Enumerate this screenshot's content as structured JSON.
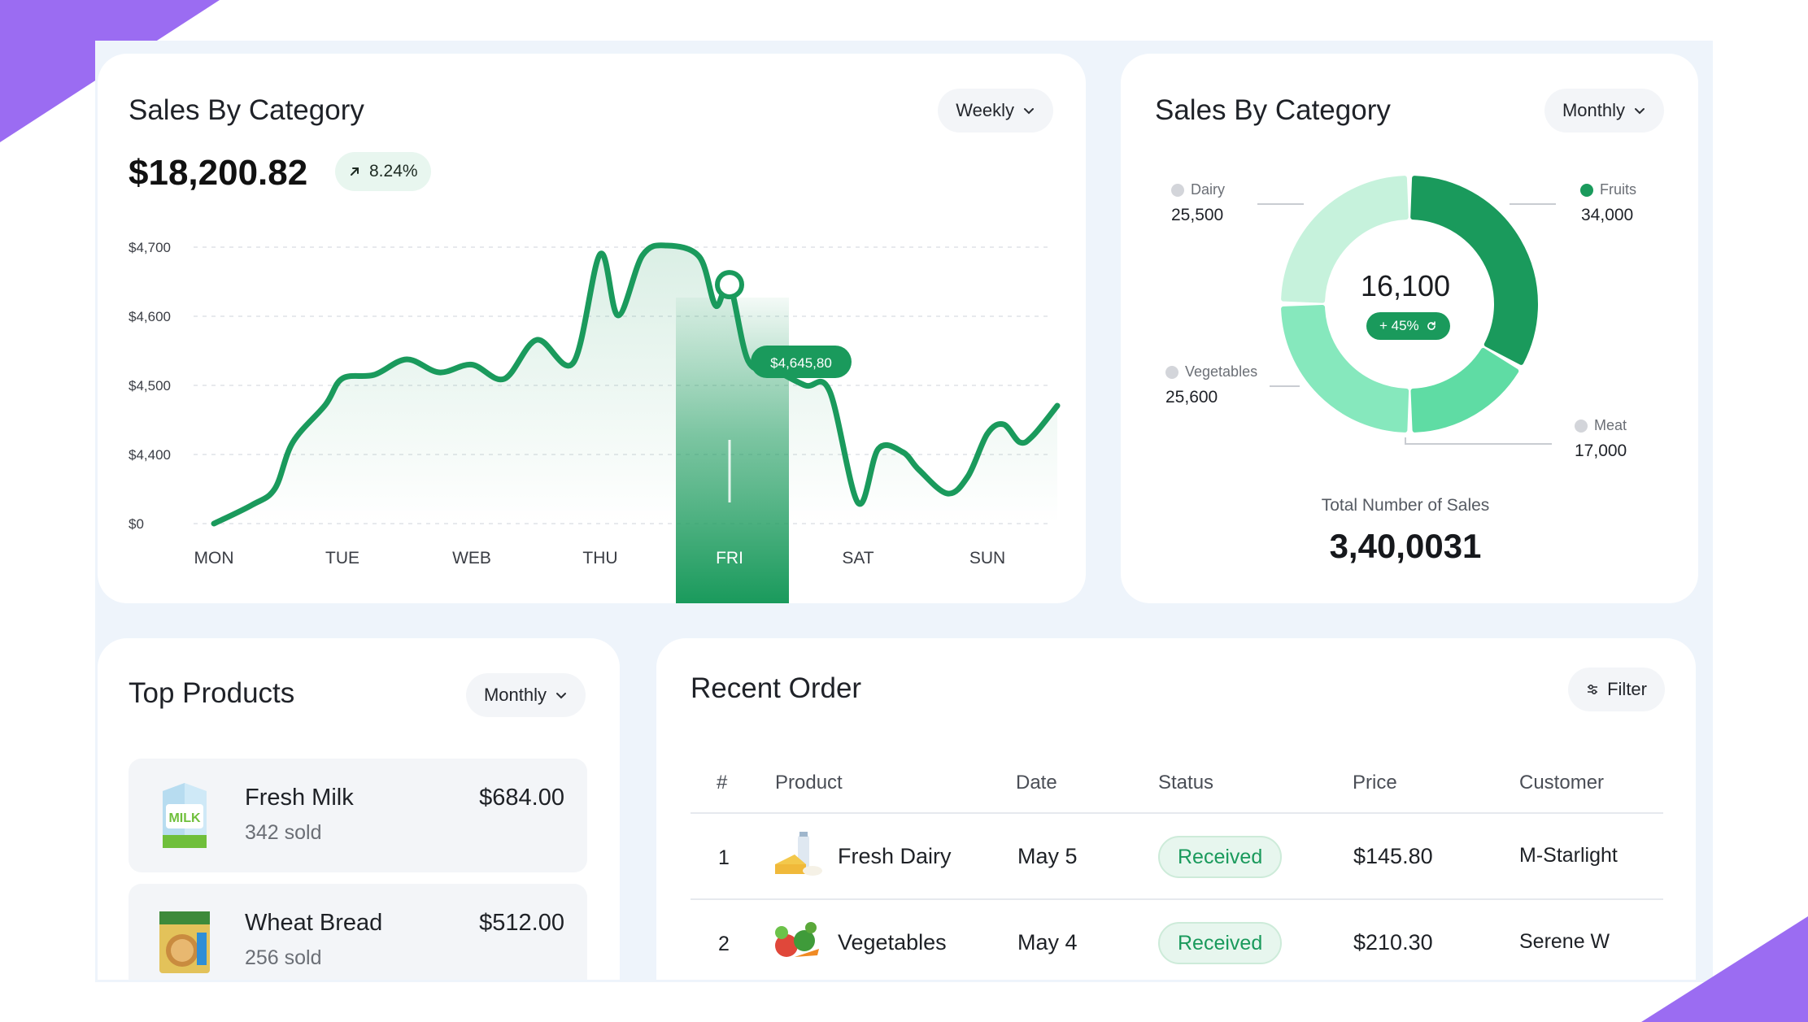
{
  "colors": {
    "accent": "#1a9a5c",
    "accent_light": "#e7f6ee",
    "corner": "#9b6cf2",
    "donut_dairy": "#c6f2dc",
    "donut_fruits": "#1a9a5c",
    "donut_meat": "#5fdca4",
    "donut_vegetables": "#86e8bd"
  },
  "sales_line": {
    "title": "Sales By Category",
    "period": "Weekly",
    "amount": "$18,200.82",
    "change": "8.24%",
    "tooltip": "$4,645,80",
    "highlight_day": "FRI"
  },
  "sales_donut": {
    "title": "Sales By Category",
    "period": "Monthly",
    "center_value": "16,100",
    "center_change": "+ 45%",
    "legend": [
      {
        "name": "Dairy",
        "value": "25,500"
      },
      {
        "name": "Fruits",
        "value": "34,000"
      },
      {
        "name": "Vegetables",
        "value": "25,600"
      },
      {
        "name": "Meat",
        "value": "17,000"
      }
    ],
    "total_label": "Total Number of Sales",
    "total_value": "3,40,0031"
  },
  "top_products": {
    "title": "Top Products",
    "period": "Monthly",
    "items": [
      {
        "name": "Fresh Milk",
        "sold": "342 sold",
        "price": "$684.00",
        "icon": "milk-carton-icon"
      },
      {
        "name": "Wheat Bread",
        "sold": "256 sold",
        "price": "$512.00",
        "icon": "bread-box-icon"
      }
    ]
  },
  "recent_orders": {
    "title": "Recent Order",
    "filter_label": "Filter",
    "columns": [
      "#",
      "Product",
      "Date",
      "Status",
      "Price",
      "Customer"
    ],
    "rows": [
      {
        "num": "1",
        "product": "Fresh Dairy",
        "date": "May 5",
        "status": "Received",
        "price": "$145.80",
        "customer": "M-Starlight",
        "icon": "dairy-products-icon"
      },
      {
        "num": "2",
        "product": "Vegetables",
        "date": "May 4",
        "status": "Received",
        "price": "$210.30",
        "customer": "Serene W",
        "icon": "vegetables-icon"
      }
    ]
  },
  "chart_data": [
    {
      "type": "line",
      "title": "",
      "x": [
        "MON",
        "TUE",
        "WEB",
        "THU",
        "FRI",
        "SAT",
        "SUN"
      ],
      "y_ticks": [
        "$0",
        "$4,400",
        "$4,500",
        "$4,600",
        "$4,700"
      ],
      "series": [
        {
          "values": [
            4300,
            4510,
            4530,
            4690,
            4645.8,
            4330,
            4430
          ]
        }
      ],
      "highlight": "FRI",
      "annotation": "$4,645,80",
      "grid": true
    },
    {
      "type": "pie",
      "categories": [
        "Fruits",
        "Meat",
        "Vegetables",
        "Dairy"
      ],
      "values": [
        34000,
        17000,
        25600,
        25500
      ],
      "center_text": "16,100",
      "donut": true
    }
  ]
}
